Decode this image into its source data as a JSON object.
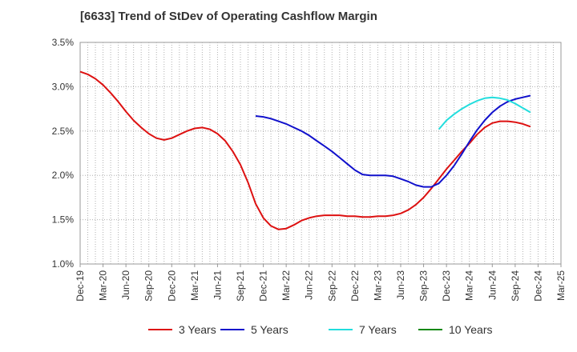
{
  "title": "[6633]  Trend of StDev of Operating Cashflow Margin",
  "chart_data": {
    "type": "line",
    "x_ticks": [
      "Dec-19",
      "Mar-20",
      "Jun-20",
      "Sep-20",
      "Dec-20",
      "Mar-21",
      "Jun-21",
      "Sep-21",
      "Dec-21",
      "Mar-22",
      "Jun-22",
      "Sep-22",
      "Dec-22",
      "Mar-23",
      "Jun-23",
      "Sep-23",
      "Dec-23",
      "Mar-24",
      "Jun-24",
      "Sep-24",
      "Dec-24",
      "Mar-25"
    ],
    "y_ticks": [
      "1.0%",
      "1.5%",
      "2.0%",
      "2.5%",
      "3.0%",
      "3.5%"
    ],
    "ylim": [
      1.0,
      3.5
    ],
    "grid": true,
    "legend_position": "bottom",
    "series": [
      {
        "name": "3 Years",
        "color": "#dd1111",
        "points": [
          [
            "Dec-19",
            3.17
          ],
          [
            "Jan-20",
            3.14
          ],
          [
            "Feb-20",
            3.09
          ],
          [
            "Mar-20",
            3.02
          ],
          [
            "Apr-20",
            2.93
          ],
          [
            "May-20",
            2.83
          ],
          [
            "Jun-20",
            2.72
          ],
          [
            "Jul-20",
            2.62
          ],
          [
            "Aug-20",
            2.54
          ],
          [
            "Sep-20",
            2.47
          ],
          [
            "Oct-20",
            2.42
          ],
          [
            "Nov-20",
            2.4
          ],
          [
            "Dec-20",
            2.42
          ],
          [
            "Jan-21",
            2.46
          ],
          [
            "Feb-21",
            2.5
          ],
          [
            "Mar-21",
            2.53
          ],
          [
            "Apr-21",
            2.54
          ],
          [
            "May-21",
            2.52
          ],
          [
            "Jun-21",
            2.47
          ],
          [
            "Jul-21",
            2.39
          ],
          [
            "Aug-21",
            2.27
          ],
          [
            "Sep-21",
            2.12
          ],
          [
            "Oct-21",
            1.92
          ],
          [
            "Nov-21",
            1.68
          ],
          [
            "Dec-21",
            1.52
          ],
          [
            "Jan-22",
            1.43
          ],
          [
            "Feb-22",
            1.39
          ],
          [
            "Mar-22",
            1.4
          ],
          [
            "Apr-22",
            1.44
          ],
          [
            "May-22",
            1.49
          ],
          [
            "Jun-22",
            1.52
          ],
          [
            "Jul-22",
            1.54
          ],
          [
            "Aug-22",
            1.55
          ],
          [
            "Sep-22",
            1.55
          ],
          [
            "Oct-22",
            1.55
          ],
          [
            "Nov-22",
            1.54
          ],
          [
            "Dec-22",
            1.54
          ],
          [
            "Jan-23",
            1.53
          ],
          [
            "Feb-23",
            1.53
          ],
          [
            "Mar-23",
            1.54
          ],
          [
            "Apr-23",
            1.54
          ],
          [
            "May-23",
            1.55
          ],
          [
            "Jun-23",
            1.57
          ],
          [
            "Jul-23",
            1.61
          ],
          [
            "Aug-23",
            1.67
          ],
          [
            "Sep-23",
            1.75
          ],
          [
            "Oct-23",
            1.85
          ],
          [
            "Nov-23",
            1.96
          ],
          [
            "Dec-23",
            2.07
          ],
          [
            "Jan-24",
            2.17
          ],
          [
            "Feb-24",
            2.27
          ],
          [
            "Mar-24",
            2.36
          ],
          [
            "Apr-24",
            2.46
          ],
          [
            "May-24",
            2.54
          ],
          [
            "Jun-24",
            2.59
          ],
          [
            "Jul-24",
            2.61
          ],
          [
            "Aug-24",
            2.61
          ],
          [
            "Sep-24",
            2.6
          ],
          [
            "Oct-24",
            2.58
          ],
          [
            "Nov-24",
            2.55
          ]
        ]
      },
      {
        "name": "5 Years",
        "color": "#1111cc",
        "points": [
          [
            "Nov-21",
            2.67
          ],
          [
            "Dec-21",
            2.66
          ],
          [
            "Jan-22",
            2.64
          ],
          [
            "Feb-22",
            2.61
          ],
          [
            "Mar-22",
            2.58
          ],
          [
            "Apr-22",
            2.54
          ],
          [
            "May-22",
            2.5
          ],
          [
            "Jun-22",
            2.45
          ],
          [
            "Jul-22",
            2.39
          ],
          [
            "Aug-22",
            2.33
          ],
          [
            "Sep-22",
            2.27
          ],
          [
            "Oct-22",
            2.2
          ],
          [
            "Nov-22",
            2.13
          ],
          [
            "Dec-22",
            2.06
          ],
          [
            "Jan-23",
            2.01
          ],
          [
            "Feb-23",
            2.0
          ],
          [
            "Mar-23",
            2.0
          ],
          [
            "Apr-23",
            2.0
          ],
          [
            "May-23",
            1.99
          ],
          [
            "Jun-23",
            1.96
          ],
          [
            "Jul-23",
            1.93
          ],
          [
            "Aug-23",
            1.89
          ],
          [
            "Sep-23",
            1.87
          ],
          [
            "Oct-23",
            1.87
          ],
          [
            "Nov-23",
            1.91
          ],
          [
            "Dec-23",
            2.0
          ],
          [
            "Jan-24",
            2.11
          ],
          [
            "Feb-24",
            2.24
          ],
          [
            "Mar-24",
            2.38
          ],
          [
            "Apr-24",
            2.51
          ],
          [
            "May-24",
            2.62
          ],
          [
            "Jun-24",
            2.71
          ],
          [
            "Jul-24",
            2.78
          ],
          [
            "Aug-24",
            2.83
          ],
          [
            "Sep-24",
            2.86
          ],
          [
            "Oct-24",
            2.88
          ],
          [
            "Nov-24",
            2.9
          ]
        ]
      },
      {
        "name": "7 Years",
        "color": "#22dddd",
        "points": [
          [
            "Nov-23",
            2.52
          ],
          [
            "Dec-23",
            2.62
          ],
          [
            "Jan-24",
            2.69
          ],
          [
            "Feb-24",
            2.75
          ],
          [
            "Mar-24",
            2.8
          ],
          [
            "Apr-24",
            2.84
          ],
          [
            "May-24",
            2.87
          ],
          [
            "Jun-24",
            2.88
          ],
          [
            "Jul-24",
            2.87
          ],
          [
            "Aug-24",
            2.85
          ],
          [
            "Sep-24",
            2.81
          ],
          [
            "Oct-24",
            2.76
          ],
          [
            "Nov-24",
            2.71
          ]
        ]
      },
      {
        "name": "10 Years",
        "color": "#118811",
        "points": []
      }
    ]
  }
}
